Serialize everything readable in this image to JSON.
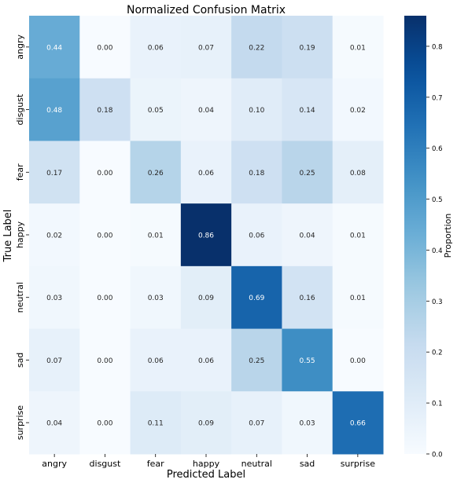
{
  "chart_data": {
    "type": "heatmap",
    "title": "Normalized Confusion Matrix",
    "xlabel": "Predicted Label",
    "ylabel": "True Label",
    "x_categories": [
      "angry",
      "disgust",
      "fear",
      "happy",
      "neutral",
      "sad",
      "surprise"
    ],
    "y_categories": [
      "angry",
      "disgust",
      "fear",
      "happy",
      "neutral",
      "sad",
      "surprise"
    ],
    "values": [
      [
        0.44,
        0.0,
        0.06,
        0.07,
        0.22,
        0.19,
        0.01
      ],
      [
        0.48,
        0.18,
        0.05,
        0.04,
        0.1,
        0.14,
        0.02
      ],
      [
        0.17,
        0.0,
        0.26,
        0.06,
        0.18,
        0.25,
        0.08
      ],
      [
        0.02,
        0.0,
        0.01,
        0.86,
        0.06,
        0.04,
        0.01
      ],
      [
        0.03,
        0.0,
        0.03,
        0.09,
        0.69,
        0.16,
        0.01
      ],
      [
        0.07,
        0.0,
        0.06,
        0.06,
        0.25,
        0.55,
        0.0
      ],
      [
        0.04,
        0.0,
        0.11,
        0.09,
        0.07,
        0.03,
        0.66
      ]
    ],
    "value_format": "2 decimals",
    "colormap": "Blues",
    "color_range": [
      0.0,
      0.86
    ],
    "colorbar": {
      "label": "Proportion",
      "ticks": [
        "0.0",
        "0.1",
        "0.2",
        "0.3",
        "0.4",
        "0.5",
        "0.6",
        "0.7",
        "0.8"
      ]
    },
    "grid": false
  }
}
